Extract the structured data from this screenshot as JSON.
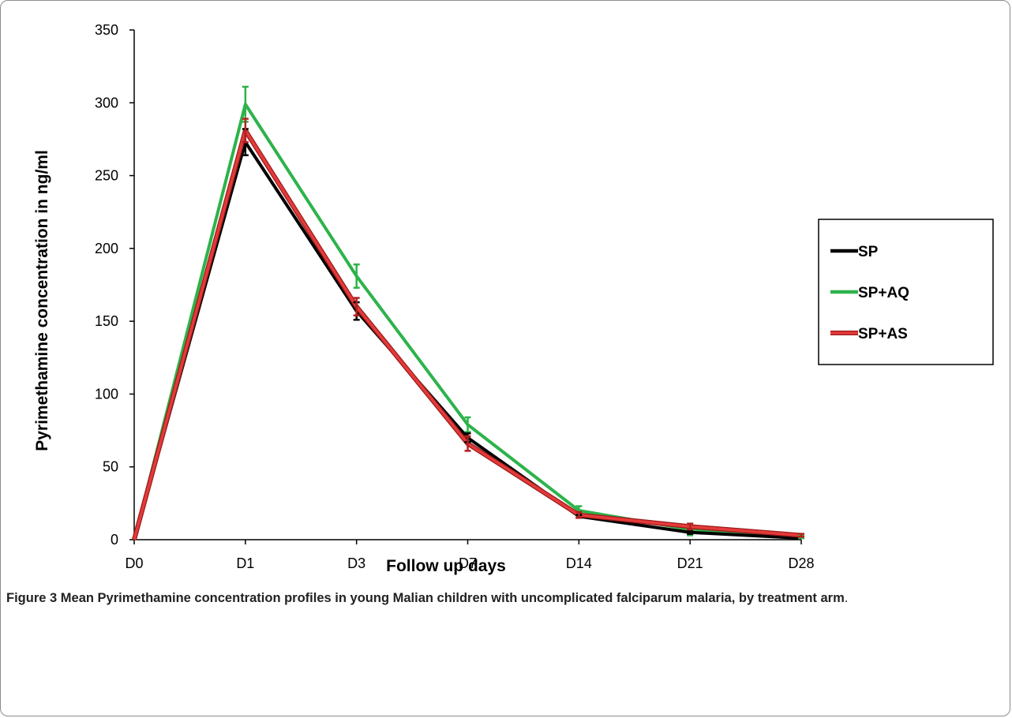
{
  "chart_data": {
    "type": "line",
    "title": "",
    "xlabel": "Follow up days",
    "ylabel": "Pyrimethamine concentration in ng/ml",
    "categories": [
      "D0",
      "D1",
      "D3",
      "D7",
      "D14",
      "D21",
      "D28"
    ],
    "ylim": [
      0,
      350
    ],
    "yticks": [
      0,
      50,
      100,
      150,
      200,
      250,
      300,
      350
    ],
    "grid": false,
    "legend_position": "right",
    "series": [
      {
        "name": "SP",
        "color": "#000000",
        "values": [
          0,
          273,
          157,
          70,
          16,
          5,
          1
        ],
        "errors": [
          0,
          9,
          6,
          3,
          1,
          1,
          0
        ]
      },
      {
        "name": "SP+AQ",
        "color": "#2db34a",
        "values": [
          0,
          299,
          181,
          79,
          20,
          7,
          2
        ],
        "errors": [
          0,
          12,
          8,
          5,
          3,
          4,
          1
        ]
      },
      {
        "name": "SP+AS",
        "color": "#e53a3a",
        "values": [
          0,
          281,
          160,
          66,
          17,
          9,
          3
        ],
        "errors": [
          0,
          8,
          6,
          5,
          2,
          2,
          1
        ]
      }
    ]
  },
  "caption": {
    "label": "Figure 3",
    "text": "Mean Pyrimethamine concentration profiles in young Malian children with uncomplicated falciparum malaria, by treatment arm",
    "end": "."
  }
}
